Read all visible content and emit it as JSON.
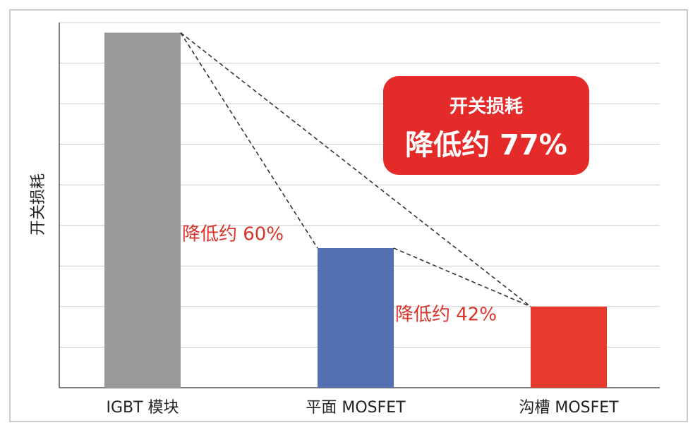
{
  "chart_data": {
    "type": "bar",
    "y_label": "开关损耗",
    "categories": [
      "IGBT 模块",
      "平面 MOSFET",
      "沟槽 MOSFET"
    ],
    "values": [
      8.75,
      3.44,
      2.0
    ],
    "colors": [
      "#9a9a9a",
      "#5470b0",
      "#e8392f"
    ],
    "ylim": [
      0,
      9
    ],
    "yticks": [
      0,
      1,
      2,
      3,
      4,
      5,
      6,
      7,
      8,
      9
    ],
    "grid": true,
    "annotations": [
      {
        "text": "降低约 60%"
      },
      {
        "text": "降低约 42%"
      }
    ],
    "callout": {
      "title": "开关损耗",
      "text": "降低约 77%"
    }
  }
}
